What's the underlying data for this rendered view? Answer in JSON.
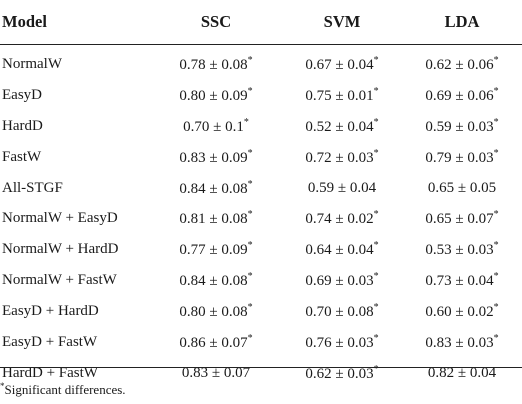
{
  "headers": [
    "Model",
    "SSC",
    "SVM",
    "LDA"
  ],
  "rows": [
    {
      "model": "NormalW",
      "ssc": "0.78 ± 0.08*",
      "svm": "0.67 ± 0.04*",
      "lda": "0.62 ± 0.06*"
    },
    {
      "model": "EasyD",
      "ssc": "0.80 ± 0.09*",
      "svm": "0.75 ± 0.01*",
      "lda": "0.69 ± 0.06*"
    },
    {
      "model": "HardD",
      "ssc": "0.70 ± 0.1*",
      "svm": "0.52 ± 0.04*",
      "lda": "0.59 ± 0.03*"
    },
    {
      "model": "FastW",
      "ssc": "0.83 ± 0.09*",
      "svm": "0.72 ± 0.03*",
      "lda": "0.79 ± 0.03*"
    },
    {
      "model": "All-STGF",
      "ssc": "0.84 ± 0.08*",
      "svm": "0.59 ± 0.04",
      "lda": "0.65 ± 0.05"
    },
    {
      "model": "NormalW + EasyD",
      "ssc": "0.81 ± 0.08*",
      "svm": "0.74 ± 0.02*",
      "lda": "0.65 ± 0.07*"
    },
    {
      "model": "NormalW + HardD",
      "ssc": "0.77 ± 0.09*",
      "svm": "0.64 ± 0.04*",
      "lda": "0.53 ± 0.03*"
    },
    {
      "model": "NormalW + FastW",
      "ssc": "0.84 ± 0.08*",
      "svm": "0.69 ± 0.03*",
      "lda": "0.73 ± 0.04*"
    },
    {
      "model": "EasyD + HardD",
      "ssc": "0.80 ± 0.08*",
      "svm": "0.70 ± 0.08*",
      "lda": "0.60 ± 0.02*"
    },
    {
      "model": "EasyD + FastW",
      "ssc": "0.86 ± 0.07*",
      "svm": "0.76 ± 0.03*",
      "lda": "0.83 ± 0.03*"
    },
    {
      "model": "HardD + FastW",
      "ssc": "0.83 ± 0.07",
      "svm": "0.62 ± 0.03*",
      "lda": "0.82 ± 0.04"
    }
  ],
  "footnote": {
    "marker": "*",
    "text": "Significant differences."
  }
}
